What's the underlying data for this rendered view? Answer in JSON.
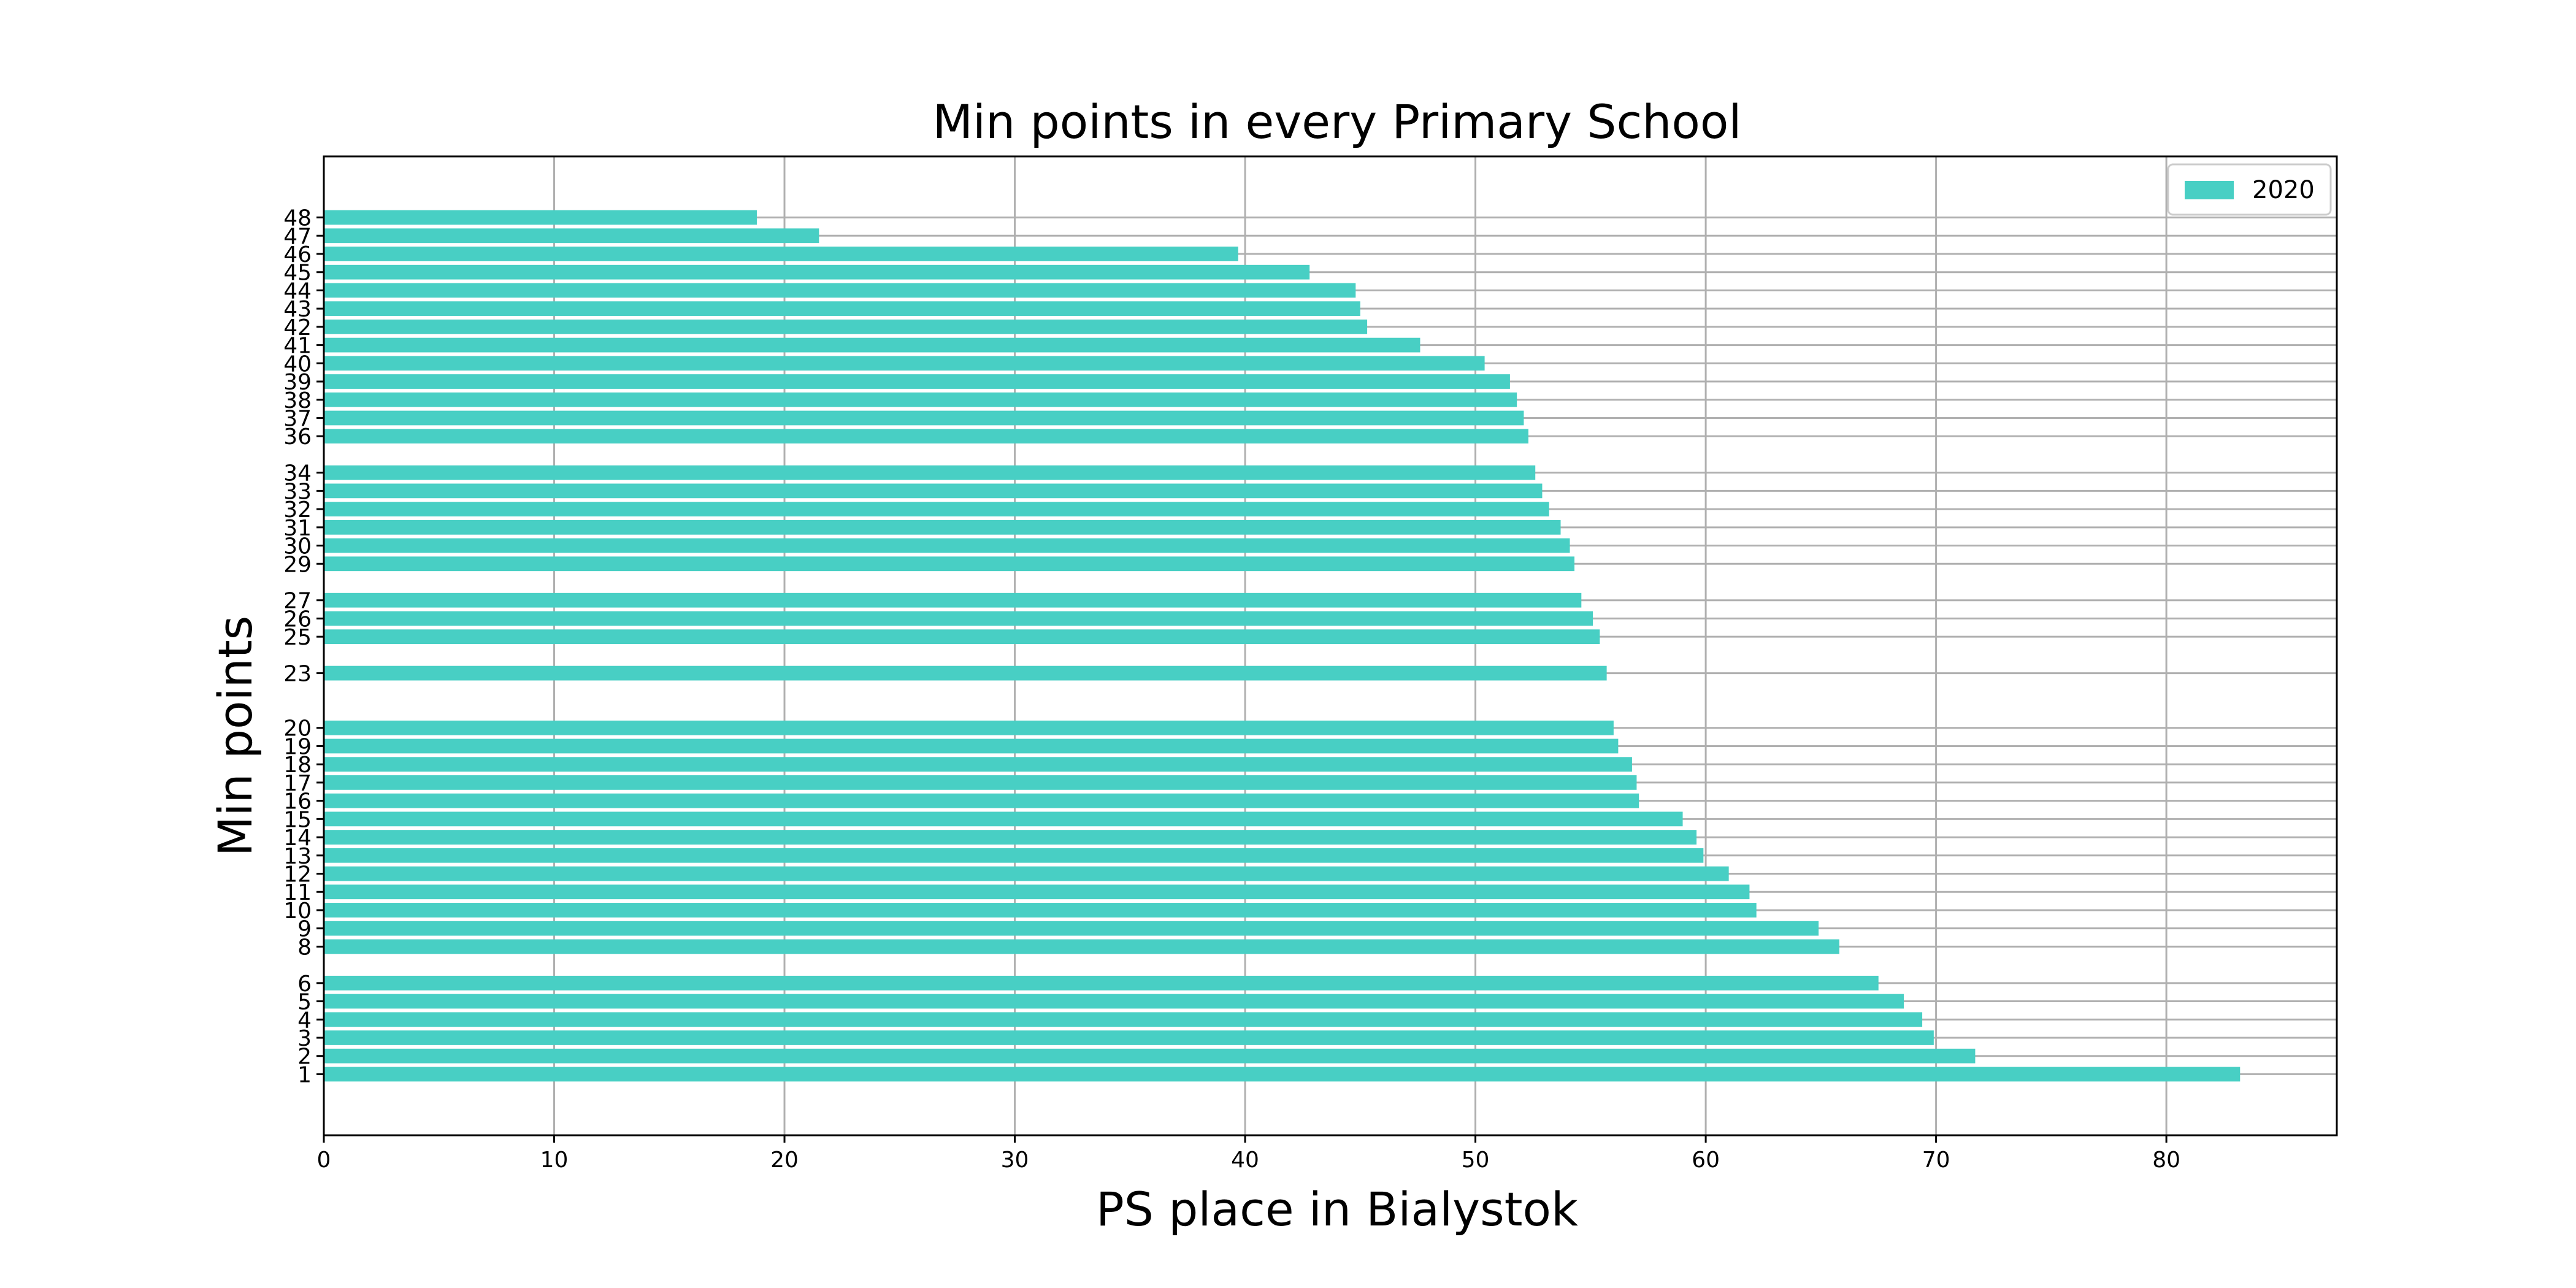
{
  "chart_data": {
    "type": "bar",
    "orientation": "horizontal",
    "title": "Min points in every Primary School",
    "xlabel": "PS place in Bialystok",
    "ylabel": "Min points",
    "xlim": [
      0,
      87.4
    ],
    "ylim": [
      -2.35,
      51.35
    ],
    "xticks": [
      0,
      10,
      20,
      30,
      40,
      50,
      60,
      70,
      80
    ],
    "grid": true,
    "legend_position": "top-right",
    "bar_color": "#48cfc4",
    "series": [
      {
        "name": "2020",
        "categories": [
          1,
          2,
          3,
          4,
          5,
          6,
          8,
          9,
          10,
          11,
          12,
          13,
          14,
          15,
          16,
          17,
          18,
          19,
          20,
          23,
          25,
          26,
          27,
          29,
          30,
          31,
          32,
          33,
          34,
          36,
          37,
          38,
          39,
          40,
          41,
          42,
          43,
          44,
          45,
          46,
          47,
          48
        ],
        "values": [
          83.2,
          71.7,
          69.9,
          69.4,
          68.6,
          67.5,
          65.8,
          64.9,
          62.2,
          61.9,
          61.0,
          59.9,
          59.6,
          59.0,
          57.1,
          57.0,
          56.8,
          56.2,
          56.0,
          55.7,
          55.4,
          55.1,
          54.6,
          54.3,
          54.1,
          53.7,
          53.2,
          52.9,
          52.6,
          52.3,
          52.1,
          51.8,
          51.5,
          50.4,
          47.6,
          45.3,
          45.0,
          44.8,
          42.8,
          39.7,
          21.5,
          18.8
        ]
      }
    ]
  }
}
